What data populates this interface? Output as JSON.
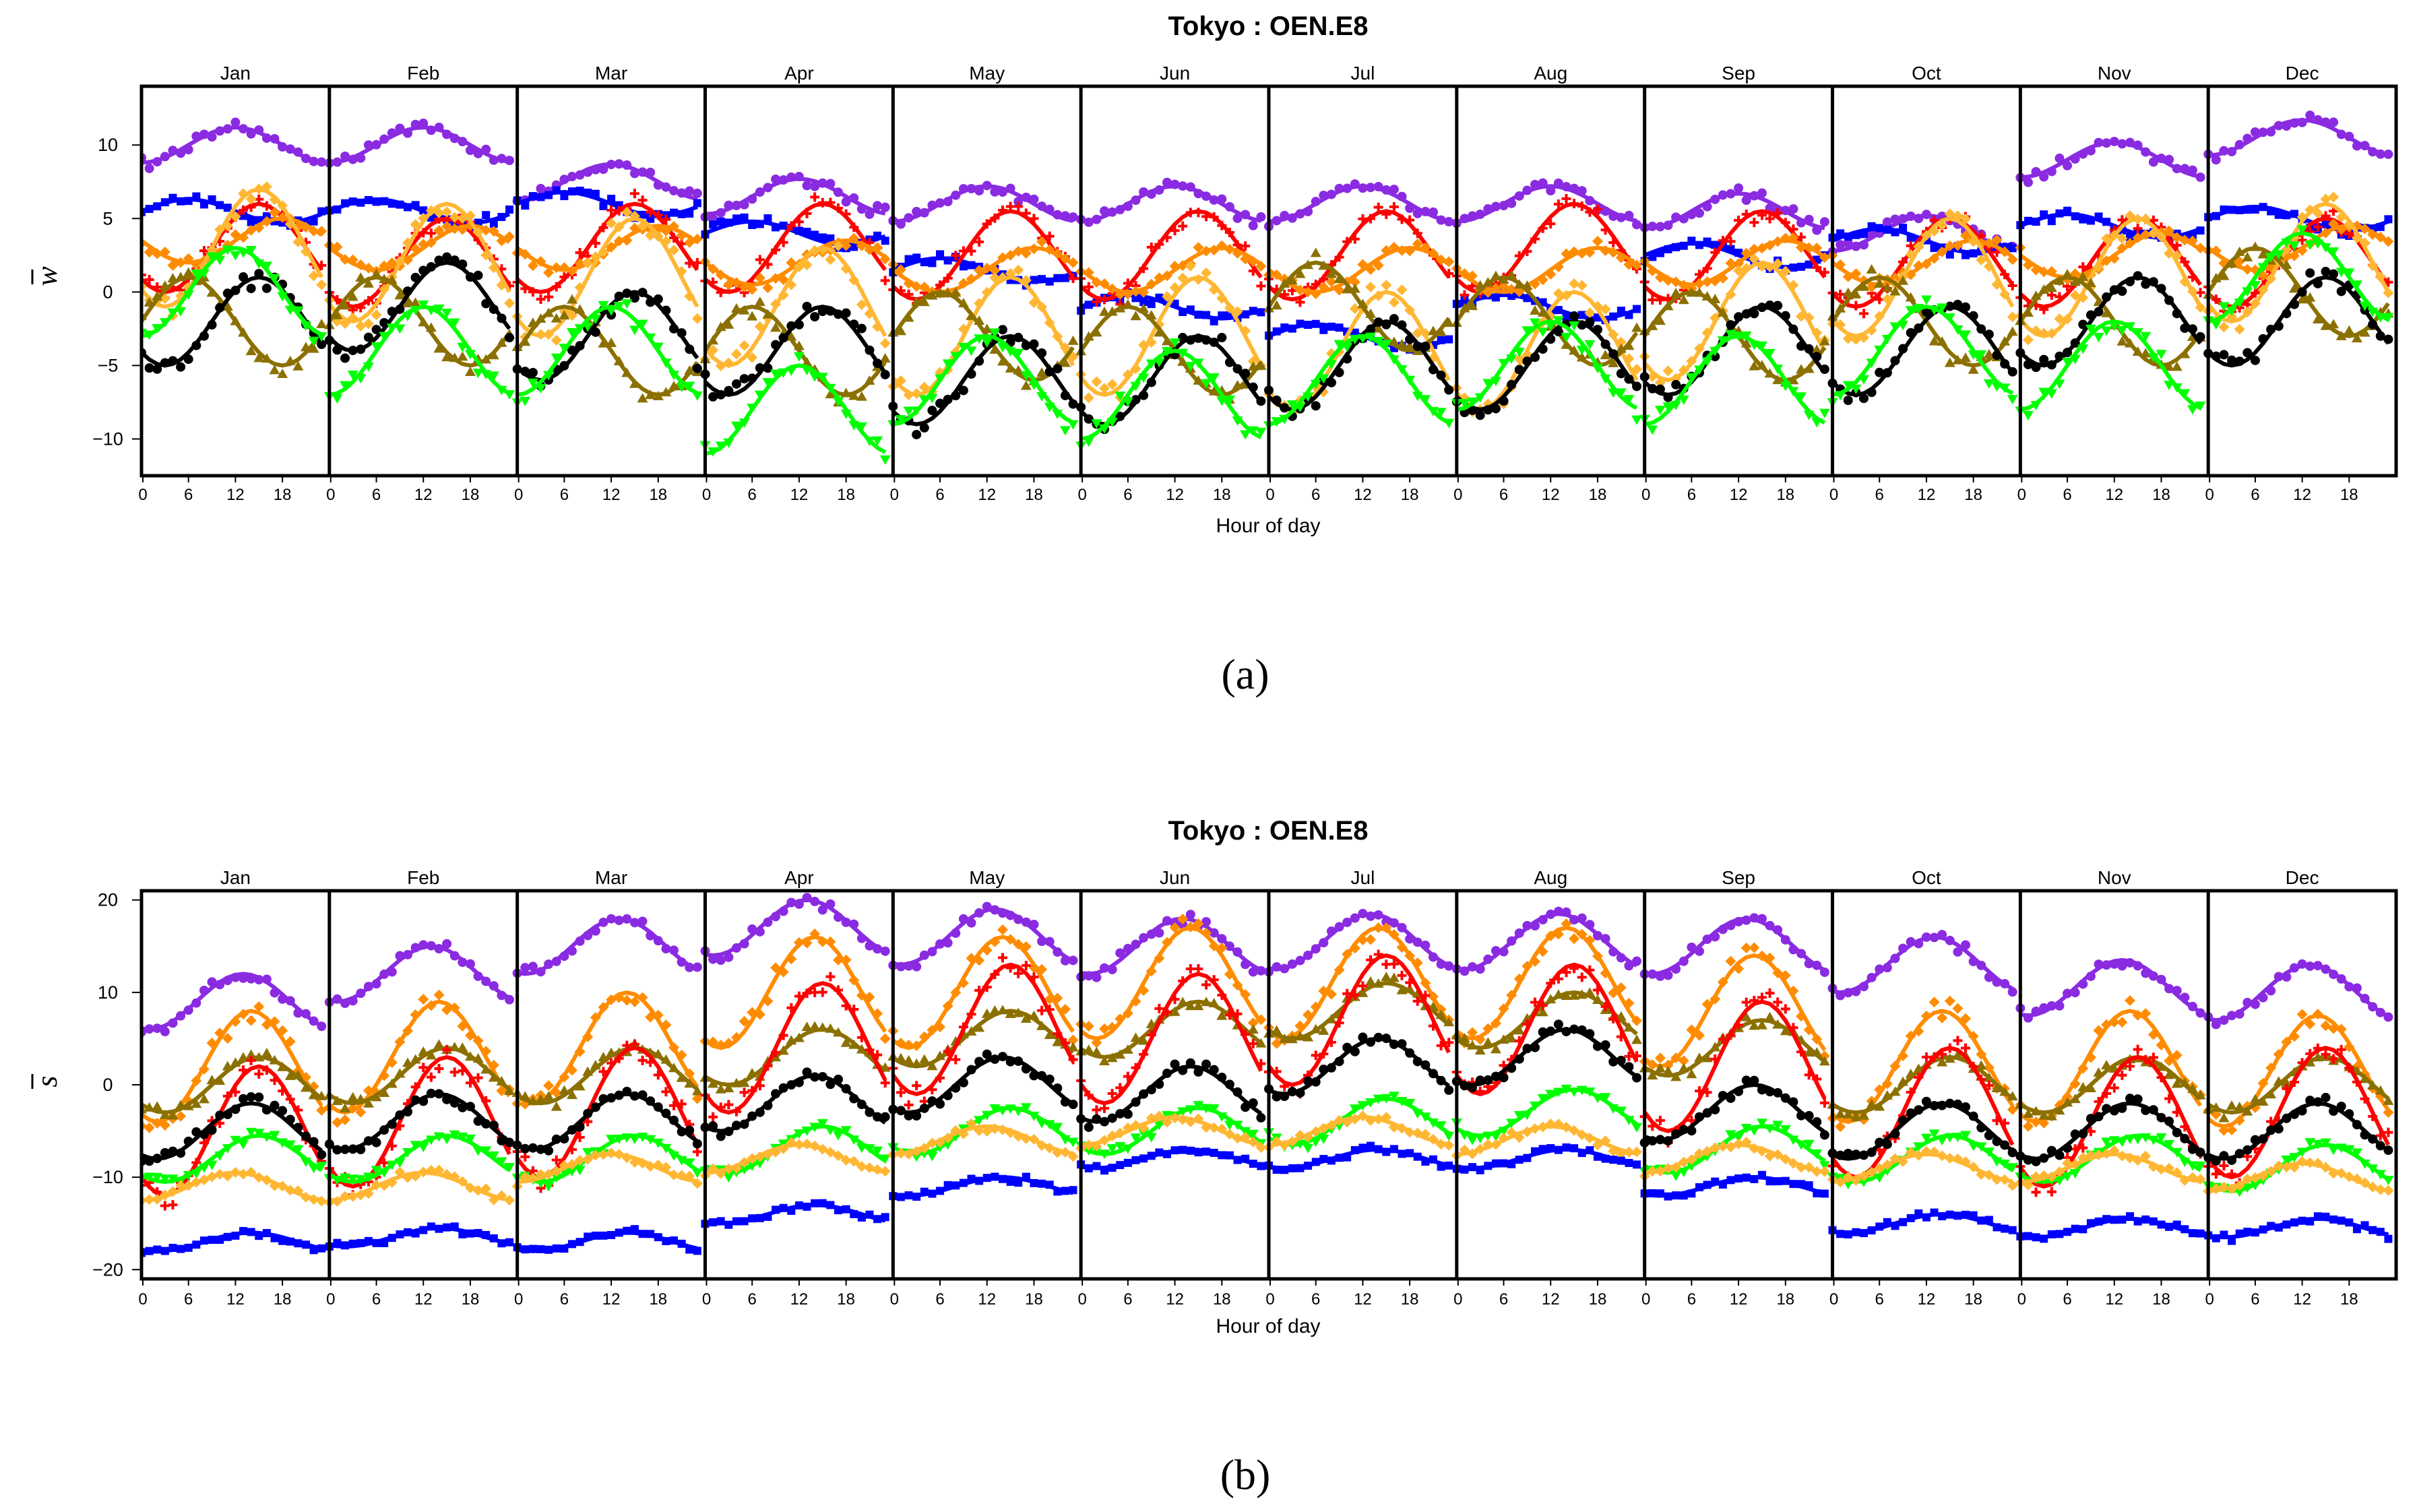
{
  "figure": {
    "panels": [
      {
        "id": "a",
        "title": "Tokyo : OEN.E8",
        "caption": "(a)",
        "xlabel": "Hour of day",
        "ylabel": "w"
      },
      {
        "id": "b",
        "title": "Tokyo : OEN.E8",
        "caption": "(b)",
        "xlabel": "Hour of day",
        "ylabel": "s"
      }
    ]
  },
  "chart_data": [
    {
      "type": "scatter",
      "title": "Tokyo : OEN.E8",
      "caption": "(a)",
      "xlabel": "Hour of day",
      "ylabel": "w",
      "ylim": [
        -12.5,
        14
      ],
      "yticks": [
        -10,
        -5,
        0,
        5,
        10
      ],
      "ytick_labels": [
        "−10",
        "−5",
        "0",
        "5",
        "10"
      ],
      "months": [
        "Jan",
        "Feb",
        "Mar",
        "Apr",
        "May",
        "Jun",
        "Jul",
        "Aug",
        "Sep",
        "Oct",
        "Nov",
        "Dec"
      ],
      "xticks": [
        0,
        6,
        12,
        18
      ],
      "xlim_per_month": [
        0,
        24
      ],
      "smooth_lines": true,
      "series": [
        {
          "name": "purple",
          "color": "#8a2be2",
          "marker": "circle",
          "base": [
            10,
            10,
            7.5,
            6.5,
            6,
            6,
            6,
            6,
            5.5,
            4,
            9,
            10.5
          ],
          "amp": 1.2,
          "peak": 12
        },
        {
          "name": "blue",
          "color": "#0000ff",
          "marker": "square",
          "base": [
            5.5,
            5.5,
            6,
            4,
            1.5,
            -1,
            -3,
            -1,
            2.5,
            3.5,
            4.5,
            5
          ],
          "amp": 0.8,
          "peak": 6
        },
        {
          "name": "red",
          "color": "#ff0000",
          "marker": "plus",
          "base": [
            3,
            2,
            3,
            3,
            2.5,
            2.5,
            2.5,
            3,
            2.5,
            2,
            2,
            2
          ],
          "amp": 3,
          "peak": 15
        },
        {
          "name": "orange",
          "color": "#ff8c00",
          "marker": "diamond",
          "base": [
            3.5,
            3,
            3,
            2,
            1.5,
            1.5,
            1.5,
            1.5,
            2,
            2,
            2.5,
            3
          ],
          "amp": 1.5,
          "peak": 18
        },
        {
          "name": "gold",
          "color": "#ffb733",
          "marker": "diamond",
          "base": [
            3,
            2,
            1,
            -1,
            -3,
            -3,
            -4,
            -4,
            -2,
            1,
            1,
            2
          ],
          "amp": 4,
          "peak": 15
        },
        {
          "name": "olive",
          "color": "#8b7000",
          "marker": "triangle",
          "base": [
            -2,
            -2,
            -4,
            -4,
            -3,
            -4,
            -1,
            -2,
            -3,
            -2,
            -2,
            0
          ],
          "amp": 3,
          "peak": 6
        },
        {
          "name": "black",
          "color": "#000000",
          "marker": "circle",
          "base": [
            -2,
            -1,
            -3,
            -4,
            -6,
            -6,
            -5,
            -5,
            -4,
            -4,
            -2,
            -2
          ],
          "amp": 3,
          "peak": 15
        },
        {
          "name": "green",
          "color": "#00ff00",
          "marker": "triangle-down",
          "base": [
            0,
            -4,
            -4,
            -8,
            -6,
            -7,
            -6,
            -5,
            -6,
            -4,
            -5,
            1
          ],
          "amp": 3,
          "peak": 12
        }
      ]
    },
    {
      "type": "scatter",
      "title": "Tokyo : OEN.E8",
      "caption": "(b)",
      "xlabel": "Hour of day",
      "ylabel": "s",
      "ylim": [
        -21,
        21
      ],
      "yticks": [
        -20,
        -10,
        0,
        10,
        20
      ],
      "ytick_labels": [
        "−20",
        "−10",
        "0",
        "10",
        "20"
      ],
      "months": [
        "Jan",
        "Feb",
        "Mar",
        "Apr",
        "May",
        "Jun",
        "Jul",
        "Aug",
        "Sep",
        "Oct",
        "Nov",
        "Dec"
      ],
      "xticks": [
        0,
        6,
        12,
        18
      ],
      "xlim_per_month": [
        0,
        24
      ],
      "smooth_lines": true,
      "series": [
        {
          "name": "purple",
          "color": "#8a2be2",
          "marker": "circle",
          "base": [
            9,
            12,
            15,
            17,
            16,
            15,
            15.5,
            15.5,
            15,
            13,
            10.5,
            10
          ],
          "amp": 3,
          "peak": 13
        },
        {
          "name": "orange",
          "color": "#ff8c00",
          "marker": "diamond",
          "base": [
            2,
            3,
            4,
            10,
            10,
            11,
            11,
            11,
            8,
            2,
            2,
            1.5
          ],
          "amp": 6,
          "peak": 14
        },
        {
          "name": "olive",
          "color": "#8b7000",
          "marker": "triangle",
          "base": [
            0,
            1,
            1,
            3,
            5,
            6,
            8,
            7,
            4,
            0,
            0,
            0
          ],
          "amp": 3,
          "peak": 15
        },
        {
          "name": "red",
          "color": "#ff0000",
          "marker": "plus",
          "base": [
            -5,
            -4,
            -3,
            4,
            6,
            5,
            7,
            6,
            2,
            -3,
            -4,
            -3
          ],
          "amp": 7,
          "peak": 15
        },
        {
          "name": "black",
          "color": "#000000",
          "marker": "circle",
          "base": [
            -5,
            -4,
            -4,
            -2,
            0,
            -1,
            2,
            3,
            -3,
            -5,
            -5,
            -5
          ],
          "amp": 3,
          "peak": 14
        },
        {
          "name": "green",
          "color": "#00ff00",
          "marker": "triangle-down",
          "base": [
            -8,
            -8,
            -8,
            -7,
            -5,
            -5,
            -4,
            -3,
            -7,
            -8,
            -8,
            -9
          ],
          "amp": 2.5,
          "peak": 15
        },
        {
          "name": "gold",
          "color": "#ffb733",
          "marker": "diamond",
          "base": [
            -11,
            -11,
            -9,
            -8,
            -6,
            -5,
            -5,
            -6,
            -8,
            -9,
            -9,
            -10
          ],
          "amp": 1.5,
          "peak": 12
        },
        {
          "name": "blue",
          "color": "#0000ff",
          "marker": "square",
          "base": [
            -17,
            -16.5,
            -17,
            -14,
            -11,
            -8,
            -8,
            -8,
            -11,
            -15,
            -15.5,
            -15.5
          ],
          "amp": 1,
          "peak": 14
        }
      ]
    }
  ]
}
